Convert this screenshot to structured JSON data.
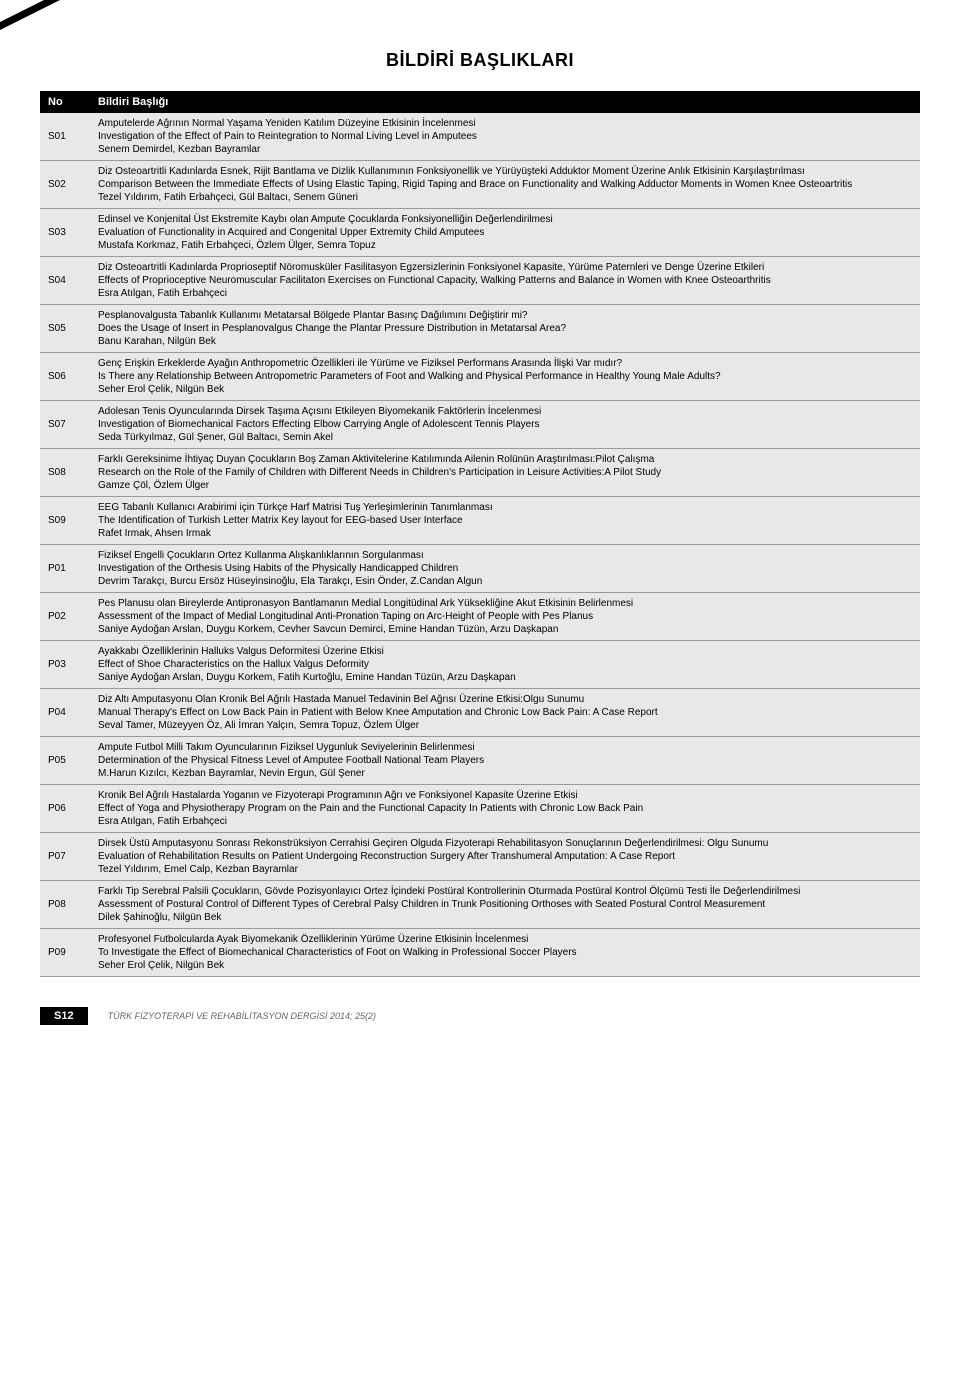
{
  "page_title": "BİLDİRİ BAŞLIKLARI",
  "table": {
    "columns": [
      "No",
      "Bildiri Başlığı"
    ],
    "rows": [
      {
        "no": "S01",
        "content": "Amputelerde Ağrının Normal Yaşama Yeniden Katılım Düzeyine Etkisinin İncelenmesi\nInvestigation of the Effect of Pain to Reintegration to Normal Living Level in Amputees\nSenem Demirdel, Kezban Bayramlar"
      },
      {
        "no": "S02",
        "content": "Diz Osteoartritli Kadınlarda Esnek, Rijit Bantlama ve Dizlik Kullanımının Fonksiyonellik ve Yürüyüşteki Adduktor Moment Üzerine Anlık Etkisinin Karşılaştırılması\nComparison Between the Immediate Effects of Using Elastic Taping, Rigid Taping and Brace on Functionality and Walking Adductor Moments in Women Knee Osteoartritis\nTezel Yıldırım, Fatih Erbahçeci, Gül Baltacı, Senem Güneri"
      },
      {
        "no": "S03",
        "content": "Edinsel ve Konjenital Üst Ekstremite Kaybı olan Ampute Çocuklarda Fonksiyonelliğin Değerlendirilmesi\nEvaluation of Functionality in Acquired and Congenital Upper Extremity Child Amputees\nMustafa Korkmaz, Fatih Erbahçeci, Özlem Ülger, Semra Topuz"
      },
      {
        "no": "S04",
        "content": "Diz Osteoartritli Kadınlarda Proprioseptif Nöromusküler Fasilitasyon Egzersizlerinin Fonksiyonel Kapasite, Yürüme Paternleri ve Denge Üzerine Etkileri\nEffects of Proprioceptive Neuromuscular Facilitaton Exercises on Functional Capacity, Walking Patterns and Balance in Women with Knee Osteoarthritis\nEsra Atılgan, Fatih Erbahçeci"
      },
      {
        "no": "S05",
        "content": "Pesplanovalgusta Tabanlık Kullanımı Metatarsal Bölgede Plantar Basınç Dağılımını Değiştirir mi?\nDoes the Usage of Insert in Pesplanovalgus Change the Plantar Pressure Distribution in Metatarsal Area?\nBanu Karahan, Nilgün Bek"
      },
      {
        "no": "S06",
        "content": "Genç Erişkin Erkeklerde Ayağın Anthropometric Özellikleri ile Yürüme ve Fiziksel Performans Arasında İlişki Var mıdır?\nIs There any Relationship Between Antropometric Parameters of Foot and Walking and Physical Performance in Healthy Young Male Adults?\nSeher Erol Çelik, Nilgün Bek"
      },
      {
        "no": "S07",
        "content": "Adolesan Tenis Oyuncularında Dirsek Taşıma Açısını Etkileyen Biyomekanik Faktörlerin İncelenmesi\nInvestigation of Biomechanical Factors Effecting Elbow Carrying Angle of Adolescent Tennis Players\nSeda Türkyılmaz, Gül Şener, Gül Baltacı, Semin Akel"
      },
      {
        "no": "S08",
        "content": "Farklı Gereksinime İhtiyaç Duyan Çocukların Boş Zaman Aktivitelerine Katılımında Ailenin Rolünün Araştırılması:Pilot Çalışma\nResearch on the Role of the Family of Children with Different Needs in Children's Participation in Leisure Activities:A Pilot Study\nGamze Çöl, Özlem Ülger"
      },
      {
        "no": "S09",
        "content": "EEG Tabanlı Kullanıcı Arabirimi için Türkçe Harf Matrisi Tuş Yerleşimlerinin Tanımlanması\nThe Identification of Turkish Letter Matrix Key layout for EEG-based User Interface\nRafet Irmak, Ahsen Irmak"
      },
      {
        "no": "P01",
        "content": "Fiziksel Engelli Çocukların Ortez Kullanma Alışkanlıklarının Sorgulanması\nInvestigation of the Orthesis Using Habits of the Physically Handicapped Children\nDevrim Tarakçı, Burcu Ersöz Hüseyinsinoğlu, Ela Tarakçı, Esin Önder, Z.Candan Algun"
      },
      {
        "no": "P02",
        "content": "Pes Planusu olan Bireylerde Antipronasyon Bantlamanın Medial Longitüdinal Ark Yüksekliğine Akut Etkisinin Belirlenmesi\nAssessment of the Impact of Medial Longitudinal Anti-Pronation Taping on Arc-Height of People with Pes Planus\nSaniye Aydoğan Arslan, Duygu Korkem, Cevher Savcun Demirci, Emine Handan Tüzün, Arzu Daşkapan"
      },
      {
        "no": "P03",
        "content": "Ayakkabı Özelliklerinin Halluks Valgus Deformitesi Üzerine Etkisi\nEffect of Shoe Characteristics on the Hallux Valgus Deformity\nSaniye Aydoğan Arslan, Duygu Korkem, Fatih Kurtoğlu, Emine Handan Tüzün, Arzu Daşkapan"
      },
      {
        "no": "P04",
        "content": "Diz Altı Amputasyonu Olan Kronik Bel Ağrılı Hastada Manuel Tedavinin Bel Ağrısı Üzerine Etkisi:Olgu Sunumu\nManual Therapy's Effect on Low Back Pain in Patient with Below Knee Amputation and Chronic Low Back Pain: A Case Report\nSeval Tamer, Müzeyyen Öz, Ali İmran Yalçın, Semra Topuz, Özlem Ülger"
      },
      {
        "no": "P05",
        "content": "Ampute Futbol Milli Takım Oyuncularının Fiziksel Uygunluk Seviyelerinin Belirlenmesi\nDetermination of the Physical Fitness Level of Amputee Football National Team Players\nM.Harun Kızılcı, Kezban Bayramlar, Nevin Ergun, Gül Şener"
      },
      {
        "no": "P06",
        "content": "Kronik Bel Ağrılı Hastalarda Yoganın ve Fizyoterapi Programının Ağrı ve Fonksiyonel Kapasite Üzerine Etkisi\nEffect of Yoga and Physiotherapy Program on the Pain and the Functional Capacity In Patients with Chronic Low Back Pain\nEsra Atılgan, Fatih Erbahçeci"
      },
      {
        "no": "P07",
        "content": "Dirsek Üstü Amputasyonu Sonrası Rekonstrüksiyon Cerrahisi Geçiren Olguda Fizyoterapi Rehabilitasyon Sonuçlarının Değerlendirilmesi: Olgu Sunumu\nEvaluation of Rehabilitation Results on Patient Undergoing Reconstruction Surgery After Transhumeral Amputation: A Case Report\nTezel Yıldırım, Emel Calp, Kezban Bayramlar"
      },
      {
        "no": "P08",
        "content": "Farklı Tip Serebral Palsili Çocukların, Gövde Pozisyonlayıcı Ortez İçindeki Postüral Kontrollerinin Oturmada Postüral Kontrol Ölçümü Testi İle Değerlendirilmesi\nAssessment of Postural Control of Different Types of Cerebral Palsy Children in Trunk Positioning Orthoses with Seated Postural Control Measurement\nDilek Şahinoğlu, Nilgün Bek"
      },
      {
        "no": "P09",
        "content": "Profesyonel Futbolcularda Ayak Biyomekanik Özelliklerinin Yürüme Üzerine Etkisinin İncelenmesi\nTo Investigate the Effect of Biomechanical Characteristics of Foot on Walking in Professional Soccer Players\nSeher Erol Çelik, Nilgün Bek"
      }
    ]
  },
  "footer": {
    "page_num": "S12",
    "journal": "TÜRK FİZYOTERAPİ VE REHABİLİTASYON DERGİSİ 2014; 25(2)"
  },
  "styles": {
    "bg_color": "#ffffff",
    "header_bg": "#000000",
    "header_fg": "#ffffff",
    "row_bg": "#e8e8e8",
    "row_border": "#9a9a9a",
    "text_color": "#000000",
    "footer_text_color": "#666666",
    "title_fontsize": 18,
    "body_fontsize": 10
  }
}
